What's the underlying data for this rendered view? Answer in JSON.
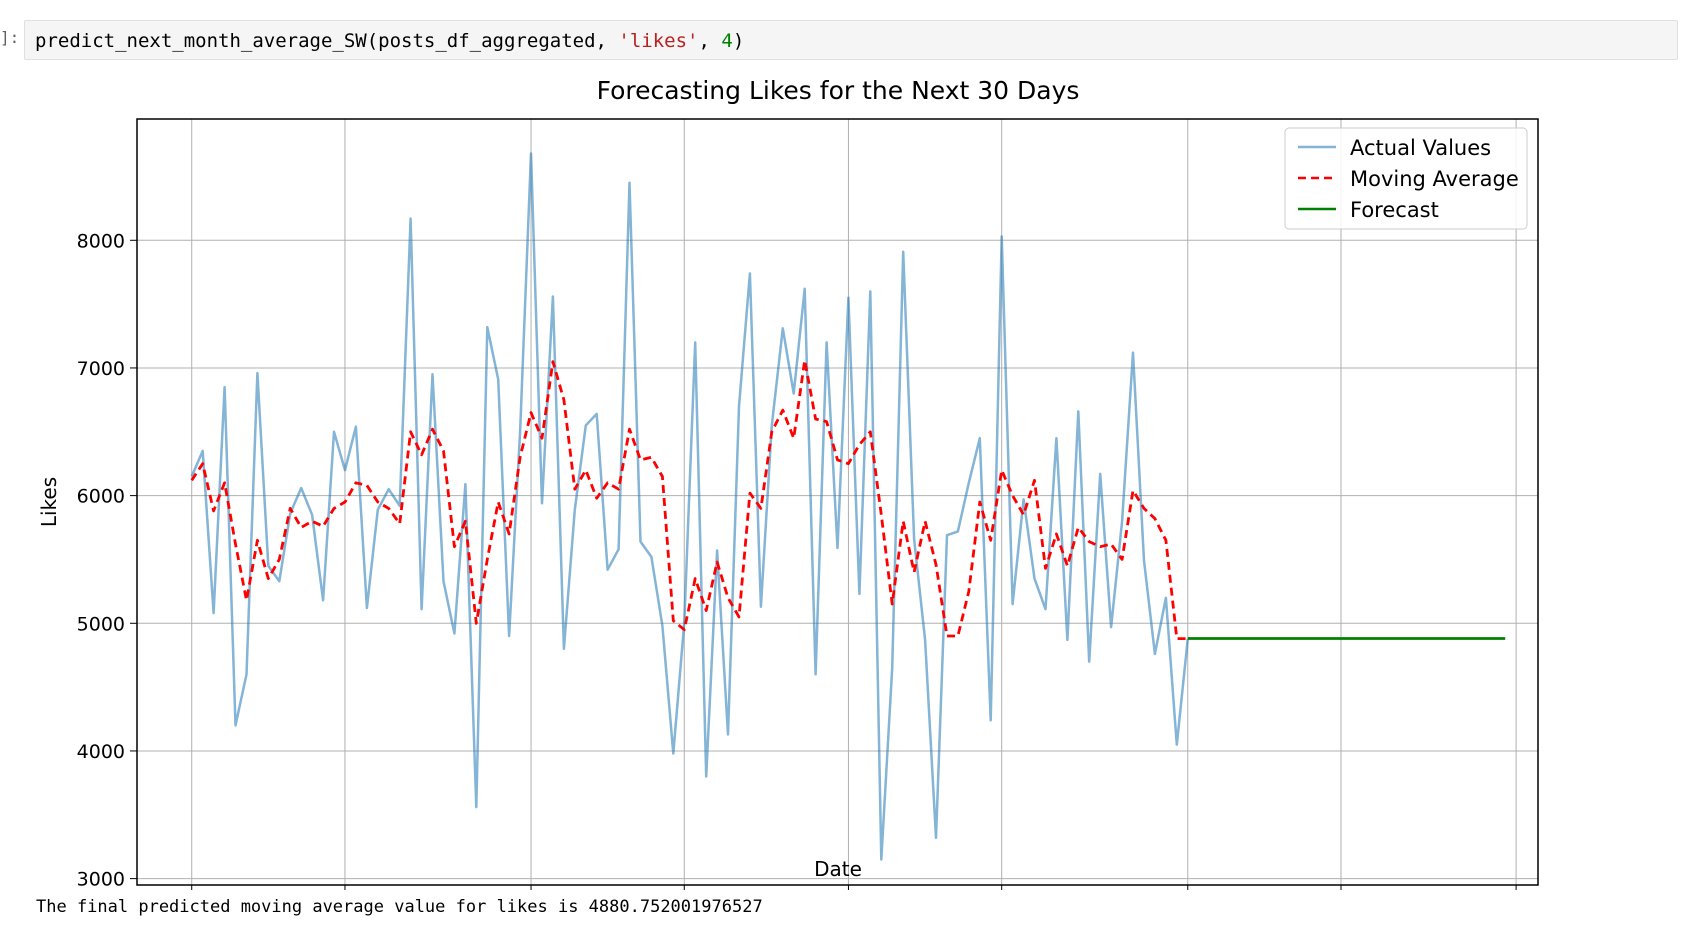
{
  "notebook": {
    "prompt": "]:",
    "code": {
      "func": "predict_next_month_average_SW(posts_df_aggregated, ",
      "str_arg": "'likes'",
      "sep": ", ",
      "num_arg": "4",
      "close": ")"
    },
    "output_text": "The final predicted moving average value for likes is 4880.752001976527"
  },
  "chart_data": {
    "type": "line",
    "title": "Forecasting Likes for the Next 30 Days",
    "xlabel": "Date",
    "ylabel": "Likes",
    "ylim": [
      2950,
      8950
    ],
    "yticks": [
      3000,
      4000,
      5000,
      6000,
      7000,
      8000
    ],
    "xlim": [
      "2023-12-27",
      "2024-05-03"
    ],
    "xticks": [
      "2024-01-01",
      "2024-01-15",
      "2024-02-01",
      "2024-02-15",
      "2024-03-01",
      "2024-03-15",
      "2024-04-01",
      "2024-04-15",
      "2024-05-01"
    ],
    "grid": true,
    "legend_position": "top-right",
    "series": [
      {
        "name": "Actual Values",
        "color": "#1f77b4",
        "style": "solid",
        "start_date": "2024-01-01",
        "values": [
          6150,
          6350,
          5080,
          6850,
          4200,
          4600,
          6960,
          5450,
          5330,
          5860,
          6060,
          5850,
          5180,
          6500,
          6200,
          6540,
          5120,
          5890,
          6050,
          5920,
          8170,
          5110,
          6950,
          5330,
          4920,
          6090,
          3560,
          7320,
          6910,
          4900,
          6500,
          8680,
          5940,
          7560,
          4800,
          5890,
          6550,
          6640,
          5420,
          5580,
          8450,
          5640,
          5520,
          4980,
          3980,
          5010,
          7200,
          3800,
          5570,
          4130,
          6700,
          7740,
          5130,
          6550,
          7310,
          6800,
          7620,
          4600,
          7200,
          5590,
          7550,
          5230,
          7600,
          3150,
          4650,
          7910,
          5660,
          4870,
          3320,
          5690,
          5720,
          6100,
          6450,
          4240,
          8030,
          5150,
          5970,
          5350,
          5110,
          6450,
          4870,
          6660,
          4700,
          6170,
          4970,
          5800,
          7120,
          5490,
          4760,
          5200,
          4050,
          4880
        ]
      },
      {
        "name": "Moving Average",
        "color": "#ff0000",
        "style": "dashed",
        "start_date": "2024-01-01",
        "values": [
          6120,
          6250,
          5880,
          6100,
          5620,
          5180,
          5650,
          5350,
          5500,
          5900,
          5750,
          5800,
          5760,
          5900,
          5950,
          6100,
          6080,
          5950,
          5900,
          5780,
          6500,
          6320,
          6520,
          6350,
          5600,
          5800,
          5000,
          5500,
          5950,
          5700,
          6300,
          6650,
          6450,
          7050,
          6750,
          6050,
          6200,
          5980,
          6100,
          6050,
          6520,
          6280,
          6300,
          6150,
          5020,
          4950,
          5350,
          5100,
          5480,
          5200,
          5050,
          6020,
          5900,
          6500,
          6670,
          6450,
          7060,
          6600,
          6580,
          6280,
          6250,
          6400,
          6500,
          5850,
          5150,
          5800,
          5400,
          5800,
          5460,
          4900,
          4900,
          5250,
          5950,
          5650,
          6200,
          6000,
          5850,
          6120,
          5430,
          5700,
          5450,
          5750,
          5640,
          5600,
          5620,
          5500,
          6040,
          5900,
          5820,
          5650,
          4880,
          4880
        ]
      },
      {
        "name": "Forecast",
        "color": "#008000",
        "style": "solid",
        "start_date": "2024-04-01",
        "end_date": "2024-04-30",
        "values": [
          4880.75
        ]
      }
    ]
  }
}
